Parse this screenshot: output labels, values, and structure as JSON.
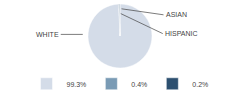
{
  "chart_data": {
    "type": "pie",
    "categories": [
      "WHITE",
      "ASIAN",
      "HISPANIC"
    ],
    "values": [
      99.3,
      0.4,
      0.2
    ],
    "value_labels": [
      "99.3%",
      "0.4%",
      "0.2%"
    ],
    "colors": [
      "#d4dce8",
      "#7a9bb5",
      "#2d5070"
    ],
    "legend": "bottom"
  }
}
